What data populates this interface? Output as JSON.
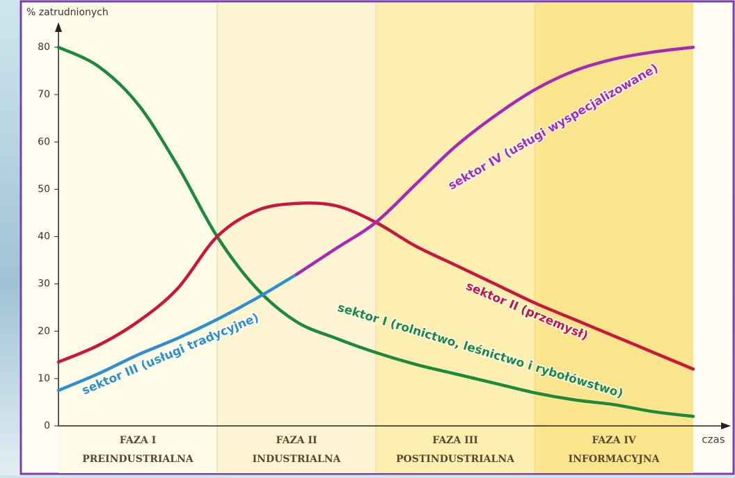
{
  "chart_data": {
    "type": "line",
    "y_label": "% zatrudnionych",
    "x_label": "czas",
    "phases": [
      {
        "name": "FAZA I",
        "label": "PREINDUSTRIALNA"
      },
      {
        "name": "FAZA II",
        "label": "INDUSTRIALNA"
      },
      {
        "name": "FAZA III",
        "label": "POSTINDUSTRIALNA"
      },
      {
        "name": "FAZA IV",
        "label": "INFORMACYJNA"
      }
    ],
    "x": [
      0,
      0.25,
      0.5,
      0.75,
      1,
      1.25,
      1.5,
      1.75,
      2,
      2.25,
      2.5,
      2.75,
      3,
      3.25,
      3.5,
      3.75,
      4
    ],
    "xlim": [
      0,
      4
    ],
    "ylim": [
      0,
      80
    ],
    "yticks": [
      0,
      10,
      20,
      30,
      40,
      50,
      60,
      70,
      80
    ],
    "series": [
      {
        "name": "sektor I (rolnictwo, leśnictwo i rybołówstwo)",
        "color": "#1b8a3c",
        "values": [
          80,
          76,
          68,
          55,
          40,
          29,
          22,
          18.5,
          15.5,
          13,
          11,
          9,
          7,
          5.5,
          4.5,
          3,
          2
        ]
      },
      {
        "name": "sektor II (przemysł)",
        "color": "#c8163c",
        "values": [
          13.5,
          17,
          22,
          29,
          40,
          45.5,
          47,
          46.5,
          43,
          38,
          34,
          30,
          26,
          22.5,
          19,
          15.5,
          12
        ]
      },
      {
        "name": "sektor III (usługi tradycyjne)",
        "color": "#2c8fd0",
        "values": [
          7.5,
          11,
          15,
          18.5,
          22.5,
          27,
          32,
          null,
          null,
          null,
          null,
          null,
          null,
          null,
          null,
          null,
          null
        ]
      },
      {
        "name": "sektor IV (usługi wyspecjalizowane)",
        "color": "#a62ab8",
        "values": [
          null,
          null,
          null,
          null,
          null,
          null,
          32,
          37.5,
          43,
          51,
          59,
          65.5,
          71,
          75,
          77.5,
          79,
          80
        ]
      }
    ]
  }
}
